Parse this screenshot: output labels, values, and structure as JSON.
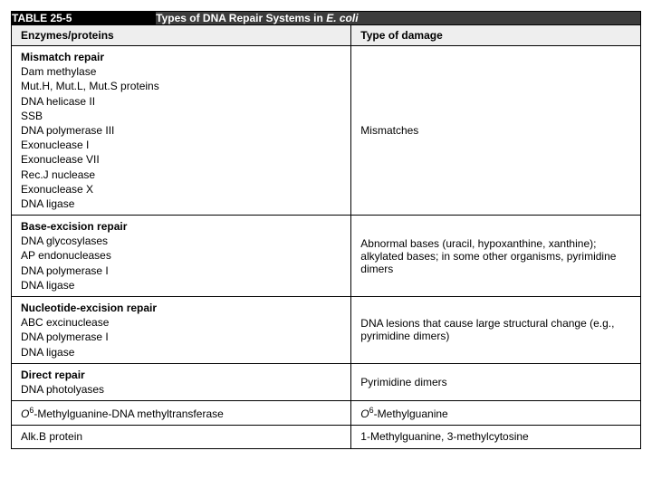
{
  "header": {
    "table_label": "TABLE 25-5",
    "title_pre": "Types of DNA Repair Systems in ",
    "title_ital": "E. coli"
  },
  "columns": {
    "c1": "Enzymes/proteins",
    "c2": "Type of damage"
  },
  "rows": [
    {
      "enz_bold": "Mismatch repair",
      "enz_lines": [
        "Dam methylase",
        "Mut.H, Mut.L, Mut.S proteins",
        "DNA helicase II",
        "SSB",
        "DNA polymerase III",
        "Exonuclease I",
        "Exonuclease VII",
        "Rec.J nuclease",
        "Exonuclease X",
        "DNA ligase"
      ],
      "dmg": "Mismatches"
    },
    {
      "enz_bold": "Base-excision repair",
      "enz_lines": [
        "DNA glycosylases",
        "AP endonucleases",
        "DNA polymerase I",
        "DNA ligase"
      ],
      "dmg": "Abnormal bases (uracil, hypoxanthine, xanthine); alkylated bases; in some other organisms, pyrimidine dimers"
    },
    {
      "enz_bold": "Nucleotide-excision repair",
      "enz_lines": [
        "ABC excinuclease",
        "DNA polymerase I",
        "DNA ligase"
      ],
      "dmg": "DNA lesions that cause large structural change (e.g., pyrimidine dimers)"
    },
    {
      "enz_bold": "Direct repair",
      "enz_lines": [
        "DNA photolyases"
      ],
      "dmg": "Pyrimidine dimers"
    },
    {
      "enz_html": "<i>O</i><sup>6</sup>-Methylguanine-DNA methyltransferase",
      "dmg_html": "<i>O</i><sup>6</sup>-Methylguanine"
    },
    {
      "enz_plain": "Alk.B protein",
      "dmg": "1-Methylguanine, 3-methylcytosine"
    }
  ]
}
